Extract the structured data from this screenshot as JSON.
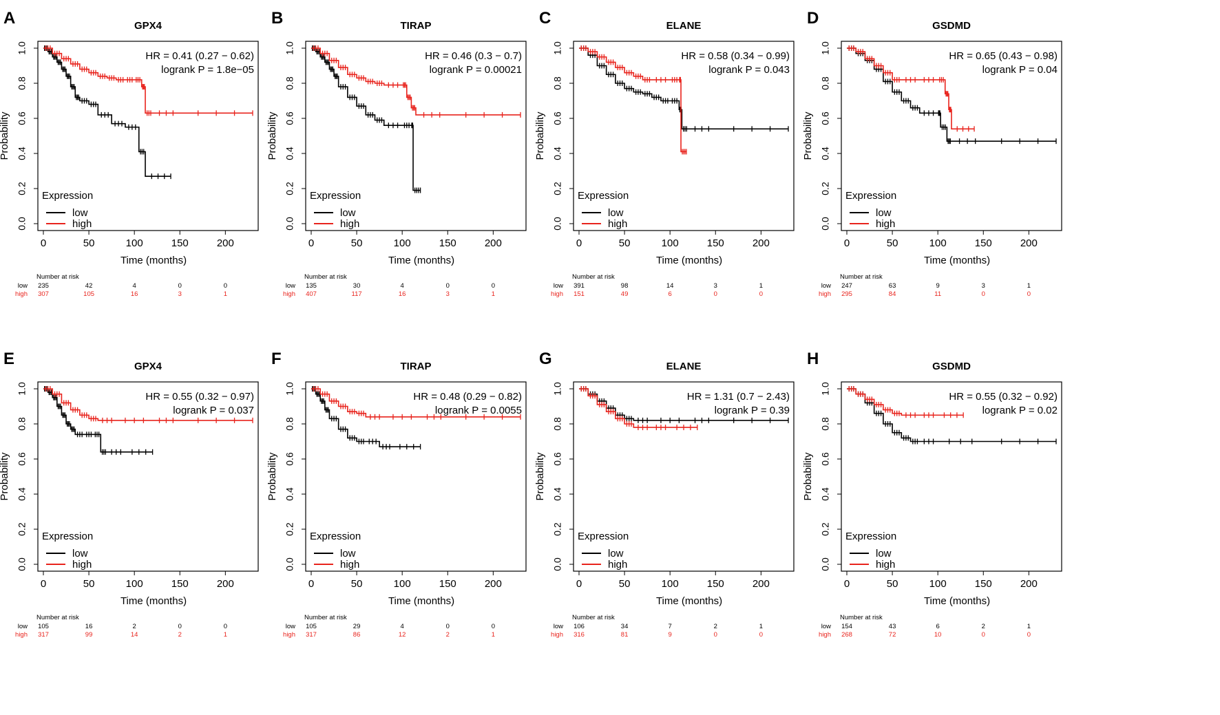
{
  "colors": {
    "low": "#000000",
    "high": "#e8231c"
  },
  "common": {
    "ylabel": "Probability",
    "xlabel": "Time (months)",
    "legend_title": "Expression",
    "legend_low": "low",
    "legend_high": "high",
    "risk_title": "Number at risk",
    "risk_low_label": "low",
    "risk_high_label": "high",
    "xticks": [
      "0",
      "50",
      "100",
      "150",
      "200"
    ],
    "yticks": [
      "0.0",
      "0.2",
      "0.4",
      "0.6",
      "0.8",
      "1.0"
    ]
  },
  "chart_data": [
    {
      "letter": "A",
      "title": "GPX4",
      "type": "line",
      "hr": "HR = 0.41 (0.27 − 0.62)",
      "p": "logrank P = 1.8e−05",
      "xlim": [
        0,
        230
      ],
      "ylim": [
        0,
        1
      ],
      "risk": {
        "low": [
          "235",
          "42",
          "4",
          "0",
          "0"
        ],
        "high": [
          "307",
          "105",
          "16",
          "3",
          "1"
        ]
      },
      "series": [
        {
          "name": "low",
          "x": [
            0,
            5,
            10,
            15,
            20,
            25,
            30,
            35,
            40,
            50,
            60,
            75,
            90,
            105,
            112,
            140
          ],
          "y": [
            1,
            0.98,
            0.95,
            0.92,
            0.88,
            0.84,
            0.78,
            0.72,
            0.7,
            0.68,
            0.62,
            0.57,
            0.55,
            0.41,
            0.27,
            0.27
          ]
        },
        {
          "name": "high",
          "x": [
            0,
            10,
            20,
            30,
            40,
            50,
            60,
            70,
            80,
            90,
            100,
            108,
            112,
            120,
            150,
            230
          ],
          "y": [
            1,
            0.97,
            0.94,
            0.91,
            0.88,
            0.86,
            0.84,
            0.83,
            0.82,
            0.82,
            0.82,
            0.78,
            0.63,
            0.63,
            0.63,
            0.63
          ]
        }
      ]
    },
    {
      "letter": "B",
      "title": "TIRAP",
      "type": "line",
      "hr": "HR = 0.46 (0.3 − 0.7)",
      "p": "logrank P = 0.00021",
      "xlim": [
        0,
        230
      ],
      "ylim": [
        0,
        1
      ],
      "risk": {
        "low": [
          "135",
          "30",
          "4",
          "0",
          "0"
        ],
        "high": [
          "407",
          "117",
          "16",
          "3",
          "1"
        ]
      },
      "series": [
        {
          "name": "low",
          "x": [
            0,
            5,
            10,
            15,
            20,
            25,
            30,
            40,
            50,
            60,
            70,
            80,
            100,
            110,
            112,
            120
          ],
          "y": [
            1,
            0.98,
            0.95,
            0.92,
            0.88,
            0.84,
            0.78,
            0.72,
            0.67,
            0.62,
            0.59,
            0.56,
            0.56,
            0.56,
            0.19,
            0.19
          ]
        },
        {
          "name": "high",
          "x": [
            0,
            10,
            20,
            30,
            40,
            50,
            60,
            70,
            80,
            100,
            105,
            110,
            115,
            150,
            230
          ],
          "y": [
            1,
            0.97,
            0.93,
            0.89,
            0.85,
            0.83,
            0.81,
            0.8,
            0.79,
            0.79,
            0.72,
            0.66,
            0.62,
            0.62,
            0.62
          ]
        }
      ]
    },
    {
      "letter": "C",
      "title": "ELANE",
      "type": "line",
      "hr": "HR = 0.58 (0.34 − 0.99)",
      "p": "logrank P = 0.043",
      "xlim": [
        0,
        230
      ],
      "ylim": [
        0,
        1
      ],
      "risk": {
        "low": [
          "391",
          "98",
          "14",
          "3",
          "1"
        ],
        "high": [
          "151",
          "49",
          "6",
          "0",
          "0"
        ]
      },
      "series": [
        {
          "name": "low",
          "x": [
            0,
            10,
            20,
            30,
            40,
            50,
            60,
            70,
            80,
            90,
            100,
            110,
            113,
            120,
            150,
            230
          ],
          "y": [
            1,
            0.96,
            0.9,
            0.85,
            0.8,
            0.77,
            0.75,
            0.74,
            0.72,
            0.7,
            0.7,
            0.65,
            0.54,
            0.54,
            0.54,
            0.54
          ]
        },
        {
          "name": "high",
          "x": [
            0,
            10,
            20,
            30,
            40,
            50,
            60,
            70,
            80,
            100,
            110,
            112,
            118
          ],
          "y": [
            1,
            0.98,
            0.95,
            0.92,
            0.89,
            0.86,
            0.84,
            0.82,
            0.82,
            0.82,
            0.82,
            0.41,
            0.41
          ]
        }
      ]
    },
    {
      "letter": "D",
      "title": "GSDMD",
      "type": "line",
      "hr": "HR = 0.65 (0.43 − 0.98)",
      "p": "logrank P = 0.04",
      "xlim": [
        0,
        230
      ],
      "ylim": [
        0,
        1
      ],
      "risk": {
        "low": [
          "247",
          "63",
          "9",
          "3",
          "1"
        ],
        "high": [
          "295",
          "84",
          "11",
          "0",
          "0"
        ]
      },
      "series": [
        {
          "name": "low",
          "x": [
            0,
            10,
            20,
            30,
            40,
            50,
            60,
            70,
            80,
            100,
            103,
            110,
            115,
            150,
            230
          ],
          "y": [
            1,
            0.97,
            0.93,
            0.88,
            0.81,
            0.75,
            0.7,
            0.66,
            0.63,
            0.63,
            0.55,
            0.47,
            0.47,
            0.47,
            0.47
          ]
        },
        {
          "name": "high",
          "x": [
            0,
            10,
            20,
            30,
            40,
            50,
            60,
            80,
            100,
            108,
            112,
            115,
            140
          ],
          "y": [
            1,
            0.98,
            0.94,
            0.9,
            0.86,
            0.82,
            0.82,
            0.82,
            0.82,
            0.74,
            0.65,
            0.54,
            0.54
          ]
        }
      ]
    },
    {
      "letter": "E",
      "title": "GPX4",
      "type": "line",
      "hr": "HR = 0.55 (0.32 − 0.97)",
      "p": "logrank P = 0.037",
      "xlim": [
        0,
        230
      ],
      "ylim": [
        0,
        1
      ],
      "risk": {
        "low": [
          "105",
          "16",
          "2",
          "0",
          "0"
        ],
        "high": [
          "317",
          "99",
          "14",
          "2",
          "1"
        ]
      },
      "series": [
        {
          "name": "low",
          "x": [
            0,
            5,
            10,
            15,
            20,
            25,
            30,
            35,
            45,
            55,
            63,
            70,
            90,
            120
          ],
          "y": [
            1,
            0.98,
            0.95,
            0.9,
            0.85,
            0.8,
            0.77,
            0.74,
            0.74,
            0.74,
            0.64,
            0.64,
            0.64,
            0.64
          ]
        },
        {
          "name": "high",
          "x": [
            0,
            10,
            20,
            30,
            40,
            50,
            60,
            80,
            120,
            150,
            230
          ],
          "y": [
            1,
            0.97,
            0.92,
            0.88,
            0.85,
            0.83,
            0.82,
            0.82,
            0.82,
            0.82,
            0.82
          ]
        }
      ]
    },
    {
      "letter": "F",
      "title": "TIRAP",
      "type": "line",
      "hr": "HR = 0.48 (0.29 − 0.82)",
      "p": "logrank P = 0.0055",
      "xlim": [
        0,
        230
      ],
      "ylim": [
        0,
        1
      ],
      "risk": {
        "low": [
          "105",
          "29",
          "4",
          "0",
          "0"
        ],
        "high": [
          "317",
          "86",
          "12",
          "2",
          "1"
        ]
      },
      "series": [
        {
          "name": "low",
          "x": [
            0,
            5,
            10,
            15,
            20,
            30,
            40,
            50,
            60,
            75,
            90,
            120
          ],
          "y": [
            1,
            0.97,
            0.93,
            0.88,
            0.83,
            0.77,
            0.72,
            0.7,
            0.7,
            0.67,
            0.67,
            0.67
          ]
        },
        {
          "name": "high",
          "x": [
            0,
            10,
            20,
            30,
            40,
            50,
            60,
            80,
            120,
            150,
            230
          ],
          "y": [
            1,
            0.97,
            0.93,
            0.9,
            0.87,
            0.86,
            0.84,
            0.84,
            0.84,
            0.84,
            0.84
          ]
        }
      ]
    },
    {
      "letter": "G",
      "title": "ELANE",
      "type": "line",
      "hr": "HR = 1.31 (0.7 − 2.43)",
      "p": "logrank P = 0.39",
      "xlim": [
        0,
        230
      ],
      "ylim": [
        0,
        1
      ],
      "risk": {
        "low": [
          "106",
          "34",
          "7",
          "2",
          "1"
        ],
        "high": [
          "316",
          "81",
          "9",
          "0",
          "0"
        ]
      },
      "series": [
        {
          "name": "low",
          "x": [
            0,
            10,
            20,
            30,
            40,
            50,
            60,
            80,
            120,
            150,
            230
          ],
          "y": [
            1,
            0.97,
            0.93,
            0.89,
            0.85,
            0.83,
            0.82,
            0.82,
            0.82,
            0.82,
            0.82
          ]
        },
        {
          "name": "high",
          "x": [
            0,
            10,
            20,
            30,
            40,
            50,
            60,
            80,
            100,
            130
          ],
          "y": [
            1,
            0.96,
            0.91,
            0.87,
            0.83,
            0.8,
            0.78,
            0.78,
            0.78,
            0.78
          ]
        }
      ]
    },
    {
      "letter": "H",
      "title": "GSDMD",
      "type": "line",
      "hr": "HR = 0.55 (0.32 − 0.92)",
      "p": "logrank P = 0.02",
      "xlim": [
        0,
        230
      ],
      "ylim": [
        0,
        1
      ],
      "risk": {
        "low": [
          "154",
          "43",
          "6",
          "2",
          "1"
        ],
        "high": [
          "268",
          "72",
          "10",
          "0",
          "0"
        ]
      },
      "series": [
        {
          "name": "low",
          "x": [
            0,
            10,
            20,
            30,
            40,
            50,
            60,
            70,
            80,
            100,
            150,
            230
          ],
          "y": [
            1,
            0.97,
            0.92,
            0.86,
            0.8,
            0.75,
            0.72,
            0.7,
            0.7,
            0.7,
            0.7,
            0.7
          ]
        },
        {
          "name": "high",
          "x": [
            0,
            10,
            20,
            30,
            40,
            50,
            60,
            80,
            100,
            128
          ],
          "y": [
            1,
            0.97,
            0.94,
            0.91,
            0.88,
            0.86,
            0.85,
            0.85,
            0.85,
            0.85
          ]
        }
      ]
    }
  ]
}
